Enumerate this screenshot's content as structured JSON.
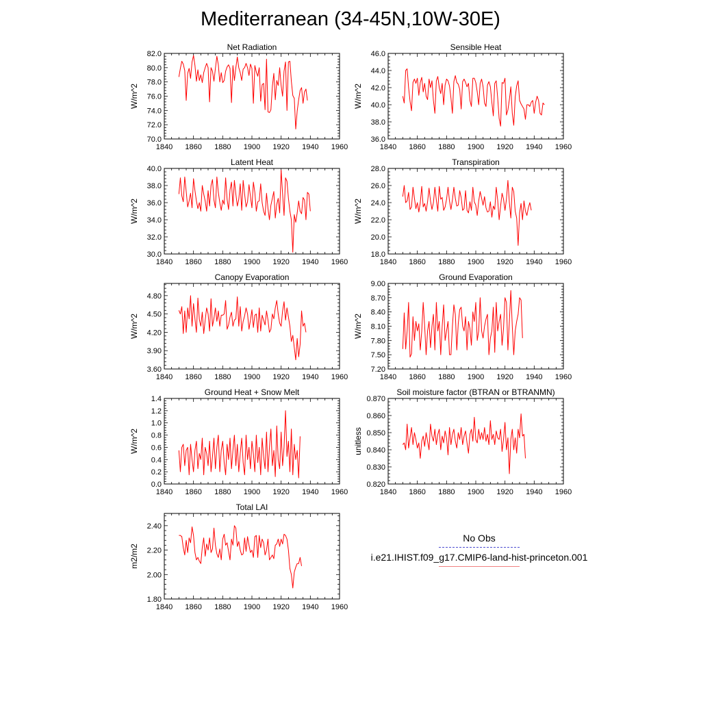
{
  "title": "Mediterranean (34-45N,10W-30E)",
  "legend": {
    "obs_label": "No Obs",
    "model_label": "i.e21.IHIST.f09_g17.CMIP6-land-hist-princeton.001",
    "obs_color": "#4b4bcf",
    "model_color": "#f08080"
  },
  "chart_data": [
    {
      "type": "line",
      "title": "Net Radiation",
      "ylabel": "W/m^2",
      "xlim": [
        1840,
        1960
      ],
      "ylim": [
        70,
        82
      ],
      "xticks": [
        "1840",
        "1860",
        "1880",
        "1900",
        "1920",
        "1940",
        "1960"
      ],
      "yticks": [
        "70.0",
        "72.0",
        "74.0",
        "76.0",
        "78.0",
        "80.0",
        "82.0"
      ],
      "series": [
        {
          "color": "#ff0000",
          "x0": 1850,
          "values": [
            78.7,
            79.9,
            80.9,
            80.5,
            79.6,
            75.4,
            79.2,
            79.9,
            78.5,
            80.8,
            81.7,
            80.3,
            78.1,
            79.7,
            78.2,
            79.0,
            77.9,
            79.3,
            80.0,
            80.6,
            80.0,
            75.2,
            80.0,
            79.5,
            78.1,
            79.9,
            81.6,
            80.4,
            78.0,
            79.3,
            77.9,
            78.2,
            79.5,
            80.1,
            80.4,
            79.9,
            75.1,
            80.3,
            78.2,
            80.0,
            81.5,
            80.0,
            79.3,
            78.2,
            79.8,
            80.0,
            80.6,
            80.0,
            78.9,
            80.5,
            79.9,
            75.0,
            80.3,
            79.4,
            78.8,
            80.0,
            75.3,
            77.6,
            77.8,
            74.1,
            81.2,
            73.8,
            73.7,
            74.1,
            77.4,
            79.2,
            75.5,
            78.2,
            77.5,
            80.0,
            77.5,
            76.0,
            79.5,
            80.8,
            74.0,
            80.8,
            80.9,
            78.1,
            76.1,
            75.7,
            71.4,
            73.9,
            75.5,
            76.8,
            77.2,
            75.0,
            76.6,
            77.0,
            75.4
          ]
        }
      ]
    },
    {
      "type": "line",
      "title": "Sensible Heat",
      "ylabel": "W/m^2",
      "xlim": [
        1840,
        1960
      ],
      "ylim": [
        36,
        46
      ],
      "xticks": [
        "1840",
        "1860",
        "1880",
        "1900",
        "1920",
        "1940",
        "1960"
      ],
      "yticks": [
        "36.0",
        "38.0",
        "40.0",
        "42.0",
        "44.0",
        "46.0"
      ],
      "series": [
        {
          "color": "#ff0000",
          "x0": 1850,
          "values": [
            41.0,
            40.2,
            44.0,
            44.2,
            42.0,
            40.4,
            39.3,
            42.6,
            43.0,
            42.5,
            43.1,
            41.1,
            42.6,
            43.2,
            41.5,
            42.5,
            41.0,
            40.6,
            43.0,
            42.0,
            42.8,
            40.5,
            39.0,
            42.8,
            43.3,
            42.0,
            41.3,
            42.5,
            40.0,
            42.3,
            43.0,
            42.8,
            42.2,
            40.8,
            39.0,
            42.7,
            43.4,
            42.6,
            42.4,
            41.8,
            39.5,
            42.7,
            43.0,
            42.6,
            42.1,
            42.5,
            40.5,
            39.8,
            43.1,
            43.1,
            42.6,
            41.5,
            40.0,
            42.5,
            43.0,
            42.1,
            40.2,
            39.8,
            42.3,
            42.7,
            42.1,
            40.3,
            38.7,
            42.5,
            42.8,
            40.8,
            38.4,
            37.5,
            42.6,
            42.5,
            43.1,
            38.8,
            39.4,
            40.6,
            42.1,
            39.0,
            37.6,
            40.9,
            42.2,
            42.8,
            40.5,
            40.1,
            39.8,
            39.5,
            38.3,
            40.0,
            40.0,
            39.8,
            40.3,
            40.5,
            39.0,
            40.3,
            41.0,
            40.5,
            39.0,
            38.8,
            40.2,
            40.0
          ]
        }
      ]
    },
    {
      "type": "line",
      "title": "Latent Heat",
      "ylabel": "W/m^2",
      "xlim": [
        1840,
        1960
      ],
      "ylim": [
        30,
        40
      ],
      "xticks": [
        "1840",
        "1860",
        "1880",
        "1900",
        "1920",
        "1940",
        "1960"
      ],
      "yticks": [
        "30.0",
        "32.0",
        "34.0",
        "36.0",
        "38.0",
        "40.0"
      ],
      "series": [
        {
          "color": "#ff0000",
          "x0": 1850,
          "values": [
            37.0,
            38.9,
            36.8,
            36.1,
            39.0,
            37.3,
            35.5,
            36.2,
            37.1,
            35.4,
            38.8,
            37.4,
            36.2,
            35.3,
            36.0,
            35.0,
            38.0,
            37.0,
            36.2,
            35.0,
            37.4,
            35.6,
            38.0,
            38.7,
            36.3,
            35.4,
            39.0,
            37.2,
            36.0,
            35.1,
            36.3,
            35.8,
            38.9,
            36.4,
            35.2,
            37.5,
            38.4,
            35.6,
            38.6,
            37.0,
            35.6,
            36.4,
            38.2,
            35.1,
            38.6,
            37.0,
            35.5,
            36.1,
            38.1,
            36.7,
            35.4,
            38.4,
            37.2,
            35.0,
            36.1,
            36.2,
            38.2,
            36.0,
            35.0,
            34.5,
            37.1,
            35.3,
            34.0,
            35.7,
            36.5,
            37.3,
            34.2,
            35.8,
            36.5,
            34.8,
            39.8,
            37.0,
            34.5,
            38.9,
            38.5,
            36.5,
            35.0,
            34.0,
            30.2,
            34.6,
            33.7,
            34.8,
            36.2,
            35.0,
            34.7,
            36.6,
            36.3,
            34.0,
            37.2,
            37.0,
            35.0
          ]
        }
      ]
    },
    {
      "type": "line",
      "title": "Transpiration",
      "ylabel": "W/m^2",
      "xlim": [
        1840,
        1960
      ],
      "ylim": [
        18,
        28
      ],
      "xticks": [
        "1840",
        "1860",
        "1880",
        "1900",
        "1920",
        "1940",
        "1960"
      ],
      "yticks": [
        "18.0",
        "20.0",
        "22.0",
        "24.0",
        "26.0",
        "28.0"
      ],
      "series": [
        {
          "color": "#ff0000",
          "x0": 1850,
          "values": [
            24.7,
            26.0,
            24.0,
            24.2,
            25.2,
            23.2,
            23.5,
            25.8,
            24.5,
            23.3,
            24.0,
            22.9,
            24.0,
            25.9,
            23.5,
            23.9,
            23.0,
            24.1,
            25.7,
            24.2,
            23.2,
            24.0,
            25.8,
            24.3,
            23.0,
            25.9,
            24.4,
            24.6,
            23.1,
            23.5,
            24.4,
            25.8,
            24.2,
            23.2,
            24.3,
            25.8,
            24.5,
            23.6,
            23.7,
            25.4,
            24.6,
            23.1,
            23.3,
            25.4,
            23.1,
            22.8,
            24.1,
            23.1,
            25.8,
            24.1,
            23.7,
            22.5,
            24.2,
            25.3,
            24.5,
            23.7,
            24.7,
            23.4,
            22.9,
            23.0,
            24.1,
            22.3,
            23.6,
            23.2,
            25.8,
            24.3,
            22.0,
            23.6,
            25.1,
            24.4,
            23.1,
            24.4,
            26.6,
            24.0,
            22.2,
            25.8,
            25.3,
            23.0,
            22.2,
            19.0,
            22.8,
            23.9,
            22.0,
            24.2,
            23.0,
            22.5,
            23.4,
            24.0,
            23.1
          ]
        }
      ]
    },
    {
      "type": "line",
      "title": "Canopy Evaporation",
      "ylabel": "W/m^2",
      "xlim": [
        1840,
        1960
      ],
      "ylim": [
        3.6,
        5.0
      ],
      "xticks": [
        "1840",
        "1860",
        "1880",
        "1900",
        "1920",
        "1940",
        "1960"
      ],
      "yticks": [
        "3.60",
        "3.90",
        "4.20",
        "4.50",
        "4.80"
      ],
      "series": [
        {
          "color": "#ff0000",
          "x0": 1850,
          "values": [
            4.56,
            4.5,
            4.62,
            4.18,
            4.55,
            4.2,
            4.6,
            4.42,
            4.8,
            4.3,
            4.67,
            4.42,
            4.2,
            4.76,
            4.41,
            4.3,
            4.53,
            4.18,
            4.4,
            4.6,
            4.5,
            4.22,
            4.75,
            4.3,
            4.43,
            4.6,
            4.38,
            4.55,
            4.3,
            4.48,
            4.48,
            4.5,
            4.72,
            4.25,
            4.32,
            4.45,
            4.53,
            4.3,
            4.4,
            4.42,
            4.78,
            4.3,
            4.62,
            4.22,
            4.38,
            4.47,
            4.6,
            4.5,
            4.25,
            4.4,
            4.57,
            4.28,
            4.48,
            4.5,
            4.2,
            4.6,
            4.22,
            4.48,
            4.4,
            4.32,
            4.55,
            4.4,
            4.2,
            4.25,
            4.5,
            4.42,
            4.6,
            4.72,
            4.5,
            4.35,
            4.3,
            4.55,
            4.7,
            4.4,
            4.6,
            4.45,
            4.3,
            4.05,
            4.15,
            3.95,
            3.75,
            4.1,
            3.8,
            4.0,
            4.55,
            4.3,
            4.35,
            4.2
          ]
        }
      ]
    },
    {
      "type": "line",
      "title": "Ground Evaporation",
      "ylabel": "W/m^2",
      "xlim": [
        1840,
        1960
      ],
      "ylim": [
        7.2,
        9.0
      ],
      "xticks": [
        "1840",
        "1860",
        "1880",
        "1900",
        "1920",
        "1940",
        "1960"
      ],
      "yticks": [
        "7.20",
        "7.50",
        "7.80",
        "8.10",
        "8.40",
        "8.70",
        "9.00"
      ],
      "series": [
        {
          "color": "#ff0000",
          "x0": 1850,
          "values": [
            7.62,
            8.38,
            7.62,
            8.0,
            8.6,
            7.45,
            7.52,
            8.3,
            7.8,
            8.2,
            8.0,
            8.15,
            7.6,
            8.0,
            8.6,
            8.1,
            7.5,
            8.0,
            8.2,
            7.65,
            8.1,
            8.35,
            7.6,
            8.6,
            8.0,
            8.2,
            7.5,
            8.1,
            8.55,
            7.8,
            8.0,
            8.2,
            7.5,
            7.5,
            8.1,
            8.55,
            8.35,
            7.6,
            8.15,
            8.45,
            8.5,
            8.1,
            8.0,
            8.3,
            7.6,
            8.2,
            8.05,
            7.7,
            8.4,
            8.2,
            8.6,
            7.8,
            8.0,
            8.7,
            8.0,
            7.85,
            8.1,
            8.25,
            8.35,
            7.5,
            7.85,
            8.0,
            8.5,
            7.55,
            8.6,
            8.0,
            8.2,
            8.35,
            7.7,
            8.05,
            8.7,
            8.6,
            7.6,
            8.2,
            8.85,
            8.1,
            7.5,
            8.0,
            8.2,
            8.35,
            8.7,
            8.65,
            7.85
          ]
        }
      ]
    },
    {
      "type": "line",
      "title": "Ground Heat + Snow Melt",
      "ylabel": "W/m^2",
      "xlim": [
        1840,
        1960
      ],
      "ylim": [
        0.0,
        1.4
      ],
      "xticks": [
        "1840",
        "1860",
        "1880",
        "1900",
        "1920",
        "1940",
        "1960"
      ],
      "yticks": [
        "0.0",
        "0.2",
        "0.4",
        "0.6",
        "0.8",
        "1.0",
        "1.2",
        "1.4"
      ],
      "series": [
        {
          "color": "#ff0000",
          "x0": 1850,
          "values": [
            0.55,
            0.2,
            0.6,
            0.65,
            0.3,
            0.55,
            0.6,
            0.15,
            0.65,
            0.4,
            0.2,
            0.55,
            0.7,
            0.25,
            0.5,
            0.4,
            0.75,
            0.15,
            0.6,
            0.5,
            0.3,
            0.7,
            0.2,
            0.45,
            0.75,
            0.25,
            0.6,
            0.8,
            0.2,
            0.55,
            0.7,
            0.35,
            0.15,
            0.65,
            0.4,
            0.75,
            0.25,
            0.55,
            0.8,
            0.3,
            0.65,
            0.2,
            0.5,
            0.75,
            0.35,
            0.15,
            0.8,
            0.4,
            0.6,
            0.25,
            0.7,
            0.5,
            0.2,
            0.8,
            0.35,
            0.6,
            0.15,
            0.75,
            0.45,
            0.25,
            0.85,
            0.2,
            0.6,
            0.9,
            0.3,
            0.55,
            0.12,
            0.95,
            0.4,
            0.25,
            0.85,
            0.3,
            0.6,
            1.2,
            0.45,
            0.7,
            0.2,
            0.9,
            0.15,
            0.65,
            0.4,
            0.55,
            0.1,
            0.78
          ]
        }
      ]
    },
    {
      "type": "line",
      "title": "Soil moisture factor (BTRAN or BTRANMN)",
      "ylabel": "unitless",
      "xlim": [
        1840,
        1960
      ],
      "ylim": [
        0.82,
        0.87
      ],
      "xticks": [
        "1840",
        "1860",
        "1880",
        "1900",
        "1920",
        "1940",
        "1960"
      ],
      "yticks": [
        "0.820",
        "0.830",
        "0.840",
        "0.850",
        "0.860",
        "0.870"
      ],
      "series": [
        {
          "color": "#ff0000",
          "x0": 1850,
          "values": [
            0.843,
            0.844,
            0.84,
            0.855,
            0.841,
            0.847,
            0.853,
            0.843,
            0.85,
            0.846,
            0.841,
            0.844,
            0.835,
            0.845,
            0.848,
            0.842,
            0.85,
            0.845,
            0.84,
            0.855,
            0.848,
            0.845,
            0.852,
            0.843,
            0.849,
            0.852,
            0.84,
            0.848,
            0.844,
            0.851,
            0.847,
            0.837,
            0.853,
            0.843,
            0.849,
            0.852,
            0.845,
            0.841,
            0.85,
            0.846,
            0.853,
            0.843,
            0.848,
            0.851,
            0.844,
            0.838,
            0.849,
            0.852,
            0.845,
            0.859,
            0.846,
            0.844,
            0.852,
            0.846,
            0.85,
            0.846,
            0.853,
            0.845,
            0.849,
            0.843,
            0.857,
            0.846,
            0.849,
            0.843,
            0.851,
            0.847,
            0.846,
            0.852,
            0.839,
            0.846,
            0.856,
            0.84,
            0.847,
            0.826,
            0.846,
            0.852,
            0.84,
            0.847,
            0.838,
            0.852,
            0.847,
            0.861,
            0.848,
            0.849,
            0.835
          ]
        }
      ]
    },
    {
      "type": "line",
      "title": "Total LAI",
      "ylabel": "m2/m2",
      "xlim": [
        1840,
        1960
      ],
      "ylim": [
        1.8,
        2.5
      ],
      "xticks": [
        "1840",
        "1860",
        "1880",
        "1900",
        "1920",
        "1940",
        "1960"
      ],
      "yticks": [
        "1.80",
        "2.00",
        "2.20",
        "2.40"
      ],
      "series": [
        {
          "color": "#ff0000",
          "x0": 1850,
          "values": [
            2.32,
            2.32,
            2.31,
            2.22,
            2.16,
            2.28,
            2.18,
            2.3,
            2.26,
            2.39,
            2.32,
            2.18,
            2.12,
            2.14,
            2.11,
            2.09,
            2.22,
            2.3,
            2.15,
            2.25,
            2.2,
            2.3,
            2.18,
            2.21,
            2.38,
            2.24,
            2.17,
            2.14,
            2.21,
            2.12,
            2.29,
            2.33,
            2.24,
            2.26,
            2.19,
            2.12,
            2.29,
            2.24,
            2.4,
            2.38,
            2.23,
            2.27,
            2.2,
            2.16,
            2.17,
            2.3,
            2.19,
            2.31,
            2.24,
            2.18,
            2.2,
            2.14,
            2.31,
            2.32,
            2.14,
            2.32,
            2.22,
            2.29,
            2.26,
            2.16,
            2.2,
            2.29,
            2.12,
            2.14,
            2.16,
            2.13,
            2.24,
            2.25,
            2.29,
            2.23,
            2.29,
            2.25,
            2.33,
            2.32,
            2.29,
            2.2,
            2.05,
            2.0,
            1.89,
            2.02,
            2.06,
            2.09,
            2.09,
            2.14,
            2.07
          ]
        }
      ]
    }
  ]
}
